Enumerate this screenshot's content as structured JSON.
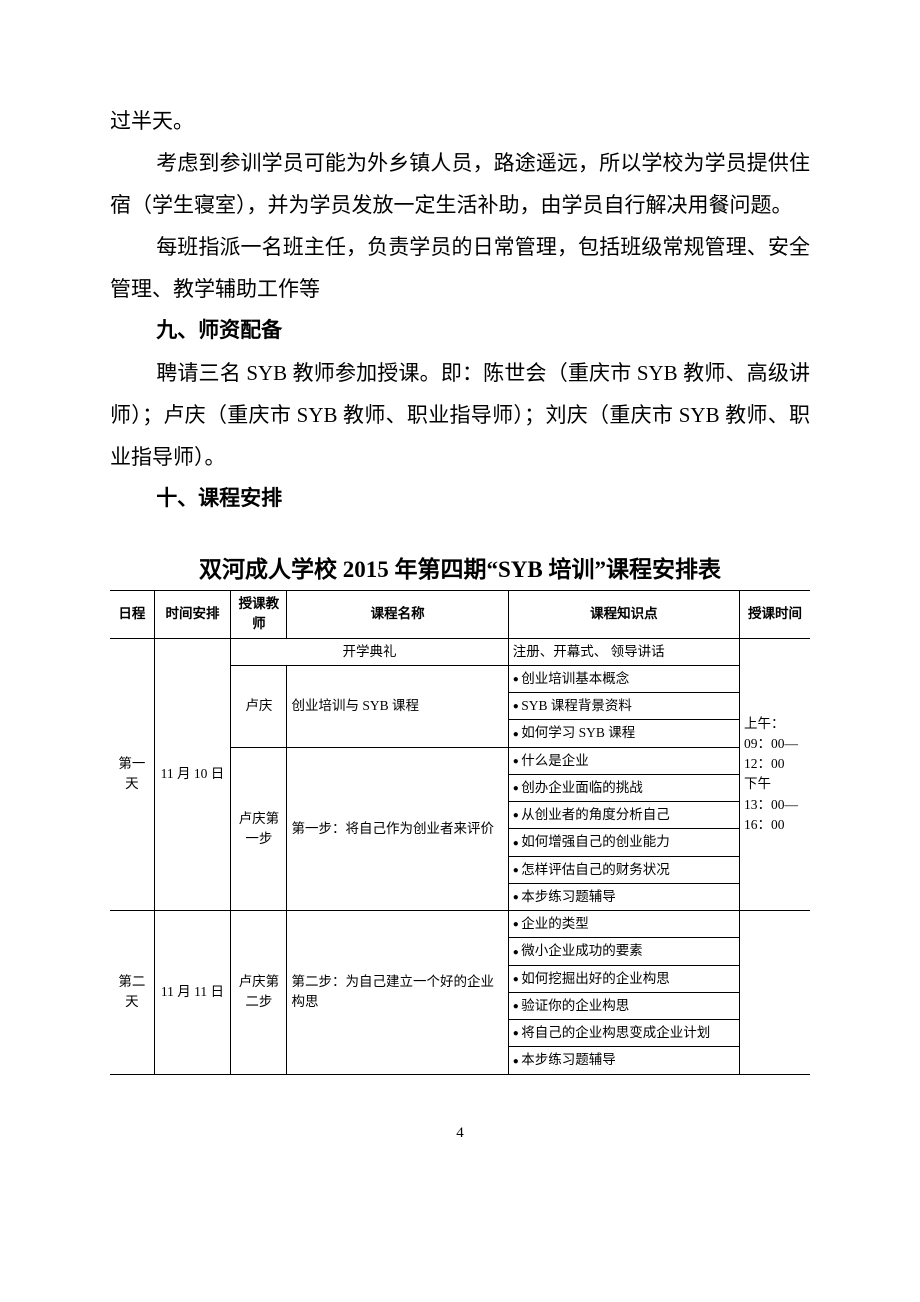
{
  "paragraphs": {
    "p1": "过半天。",
    "p2": "考虑到参训学员可能为外乡镇人员，路途遥远，所以学校为学员提供住宿（学生寝室），并为学员发放一定生活补助，由学员自行解决用餐问题。",
    "p3": "每班指派一名班主任，负责学员的日常管理，包括班级常规管理、安全管理、教学辅助工作等",
    "h9": "九、师资配备",
    "p4": "聘请三名 SYB 教师参加授课。即：陈世会（重庆市 SYB 教师、高级讲师）；卢庆（重庆市 SYB 教师、职业指导师）；刘庆（重庆市 SYB 教师、职业指导师）。",
    "h10": "十、课程安排"
  },
  "table_title": "双河成人学校 2015 年第四期“SYB 培训”课程安排表",
  "columns": {
    "c1": "日程",
    "c2": "时间安排",
    "c3": "授课教师",
    "c4": "课程名称",
    "c5": "课程知识点",
    "c6": "授课时间"
  },
  "day1": {
    "label": "第一天",
    "date": "11 月 10 日",
    "opening_name": "开学典礼",
    "opening_points": "注册、开幕式、  领导讲话",
    "block1": {
      "teacher": "卢庆",
      "course": "创业培训与 SYB 课程",
      "points": [
        "创业培训基本概念",
        "SYB 课程背景资料",
        "如何学习 SYB 课程"
      ]
    },
    "block2": {
      "teacher": "卢庆第一步",
      "course": "第一步：将自己作为创业者来评价",
      "points": [
        "什么是企业",
        "创办企业面临的挑战",
        "从创业者的角度分析自己",
        "如何增强自己的创业能力",
        "怎样评估自己的财务状况",
        "本步练习题辅导"
      ]
    }
  },
  "day2": {
    "label": "第二天",
    "date": "11 月 11 日",
    "block": {
      "teacher": "卢庆第二步",
      "course": "第二步：为自己建立一个好的企业构思",
      "points": [
        "企业的类型",
        "微小企业成功的要素",
        "如何挖掘出好的企业构思",
        "验证你的企业构思",
        "将自己的企业构思变成企业计划",
        "本步练习题辅导"
      ]
    }
  },
  "time_cell": "上午：\n09：00—12：00\n下午\n13：00—16：00",
  "page_number": "4",
  "col_widths": [
    "44",
    "76",
    "56",
    "220",
    "230",
    "70"
  ]
}
